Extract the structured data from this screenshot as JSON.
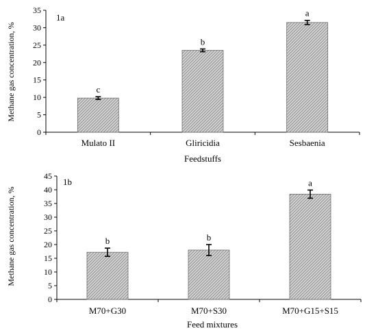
{
  "chart_data": [
    {
      "type": "bar",
      "panel_label": "1a",
      "categories": [
        "Mulato II",
        "Gliricidia",
        "Sesbaenia"
      ],
      "values": [
        9.8,
        23.5,
        31.5
      ],
      "errors": [
        0.4,
        0.4,
        0.6
      ],
      "significance": [
        "c",
        "b",
        "a"
      ],
      "xlabel": "Feedstuffs",
      "ylabel": "Methane gas concentration, %",
      "ylim": [
        0,
        35
      ],
      "yticks": [
        "0",
        "5",
        "10",
        "15",
        "20",
        "25",
        "30",
        "35"
      ],
      "grid": false,
      "bar_pattern": "diagonal-hatch",
      "bar_color": "#9a9a9a"
    },
    {
      "type": "bar",
      "panel_label": "1b",
      "categories": [
        "M70+G30",
        "M70+S30",
        "M70+G15+S15"
      ],
      "values": [
        17.2,
        18.0,
        38.4
      ],
      "errors": [
        1.5,
        2.0,
        1.5
      ],
      "significance": [
        "b",
        "b",
        "a"
      ],
      "xlabel": "Feed mixtures",
      "ylabel": "Methane gas concentration, %",
      "ylim": [
        0,
        45
      ],
      "yticks": [
        "0",
        "5",
        "10",
        "15",
        "20",
        "25",
        "30",
        "35",
        "40",
        "45"
      ],
      "grid": false,
      "bar_pattern": "diagonal-hatch",
      "bar_color": "#9a9a9a"
    }
  ]
}
